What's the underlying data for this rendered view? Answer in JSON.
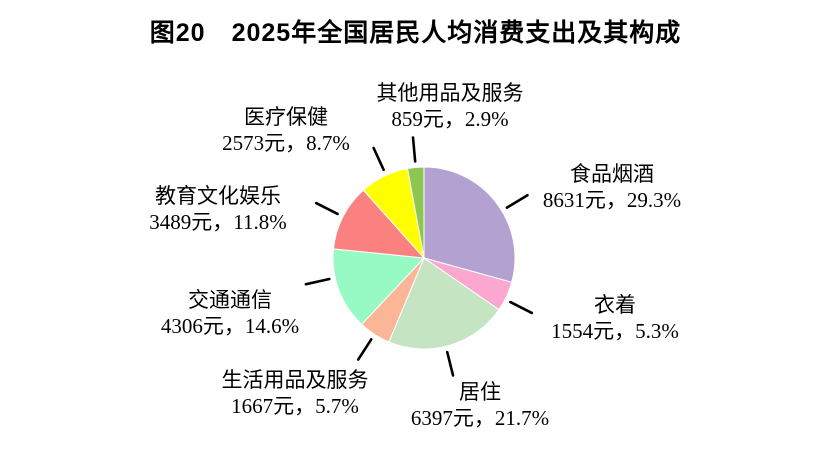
{
  "title": "图20　2025年全国居民人均消费支出及其构成",
  "chart_data": {
    "type": "pie",
    "title": "图20　2025年全国居民人均消费支出及其构成",
    "unit": "元",
    "start_angle_deg": 0,
    "direction": "clockwise",
    "total_percent": 100.0,
    "segments": [
      {
        "label": "食品烟酒",
        "value": 8631,
        "percent": 29.3,
        "value_text": "8631元，29.3%",
        "color": "#B3A1D1"
      },
      {
        "label": "衣着",
        "value": 1554,
        "percent": 5.3,
        "value_text": "1554元，5.3%",
        "color": "#FBA7D0"
      },
      {
        "label": "居住",
        "value": 6397,
        "percent": 21.7,
        "value_text": "6397元，21.7%",
        "color": "#C4E4C2"
      },
      {
        "label": "生活用品及服务",
        "value": 1667,
        "percent": 5.7,
        "value_text": "1667元，5.7%",
        "color": "#FAB696"
      },
      {
        "label": "交通通信",
        "value": 4306,
        "percent": 14.6,
        "value_text": "4306元，14.6%",
        "color": "#97FAC4"
      },
      {
        "label": "教育文化娱乐",
        "value": 3489,
        "percent": 11.8,
        "value_text": "3489元，11.8%",
        "color": "#FB8181"
      },
      {
        "label": "医疗保健",
        "value": 2573,
        "percent": 8.7,
        "value_text": "2573元，8.7%",
        "color": "#FFFF00"
      },
      {
        "label": "其他用品及服务",
        "value": 859,
        "percent": 2.9,
        "value_text": "859元，2.9%",
        "color": "#8CC751"
      }
    ],
    "tick_color": "#000000",
    "slice_border_color": "#FFFFFF"
  }
}
